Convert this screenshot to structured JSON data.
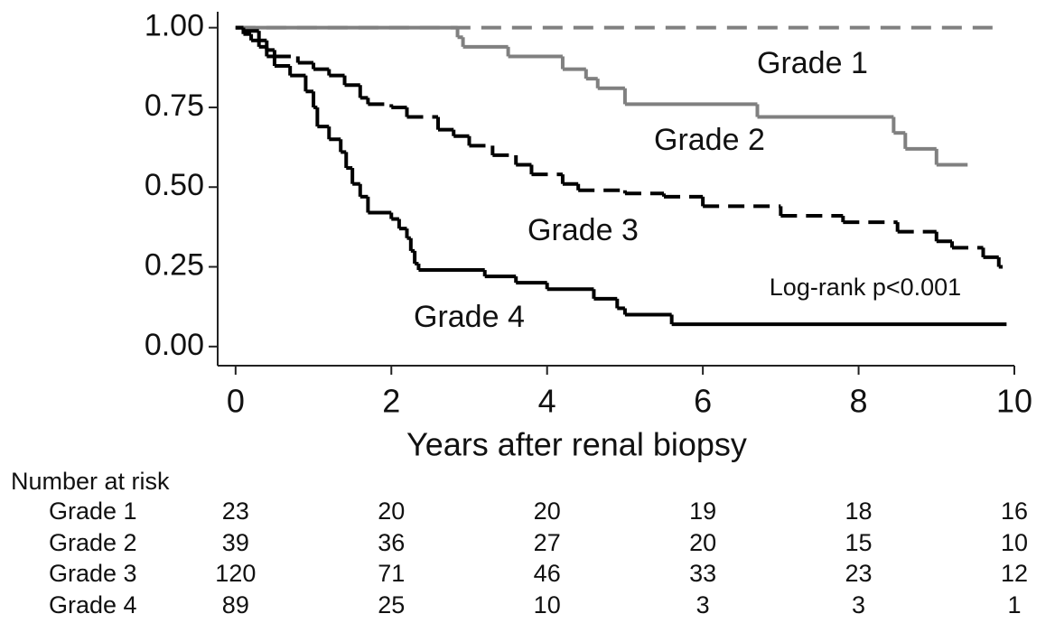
{
  "chart_data": {
    "type": "step",
    "xlabel": "Years after renal biopsy",
    "xlim": [
      -0.23,
      10
    ],
    "ylim": [
      -0.06,
      1.05
    ],
    "xticks": [
      0,
      2,
      4,
      6,
      8,
      10
    ],
    "yticks": [
      {
        "value": 0,
        "label": "0.00"
      },
      {
        "value": 0.25,
        "label": "0.25"
      },
      {
        "value": 0.5,
        "label": "0.50"
      },
      {
        "value": 0.75,
        "label": "0.75"
      },
      {
        "value": 1,
        "label": "1.00"
      }
    ],
    "annotation": "Log-rank p<0.001",
    "risk_title": "Number at risk",
    "series": [
      {
        "name": "Grade 1",
        "color": "#808080",
        "line_style": "dashed",
        "x": [
          0,
          9.77
        ],
        "values": [
          1,
          1
        ],
        "at_risk": [
          23,
          20,
          20,
          19,
          18,
          16
        ]
      },
      {
        "name": "Grade 2",
        "color": "#808080",
        "line_style": "solid",
        "x": [
          0,
          2.85,
          2.92,
          3.5,
          4.2,
          4.5,
          4.65,
          5.0,
          6.7,
          8.45,
          8.6,
          9.0,
          9.4
        ],
        "values": [
          1,
          0.97,
          0.94,
          0.91,
          0.87,
          0.84,
          0.81,
          0.76,
          0.72,
          0.67,
          0.62,
          0.57,
          0.57
        ],
        "at_risk": [
          39,
          36,
          27,
          20,
          15,
          10
        ]
      },
      {
        "name": "Grade 3",
        "color": "#000000",
        "line_style": "dashed",
        "x": [
          0,
          0.1,
          0.3,
          0.4,
          0.5,
          0.8,
          1.0,
          1.2,
          1.4,
          1.6,
          1.7,
          2.0,
          2.2,
          2.6,
          2.8,
          3.0,
          3.3,
          3.6,
          3.8,
          4.2,
          4.4,
          5.0,
          5.5,
          6.0,
          7.0,
          7.8,
          8.5,
          9.0,
          9.2,
          9.6,
          9.8,
          9.85
        ],
        "values": [
          1,
          0.99,
          0.96,
          0.93,
          0.91,
          0.89,
          0.87,
          0.85,
          0.82,
          0.78,
          0.76,
          0.75,
          0.72,
          0.68,
          0.66,
          0.63,
          0.6,
          0.57,
          0.54,
          0.51,
          0.49,
          0.48,
          0.47,
          0.44,
          0.41,
          0.39,
          0.36,
          0.33,
          0.31,
          0.28,
          0.25,
          0.25
        ],
        "at_risk": [
          120,
          71,
          46,
          33,
          23,
          12
        ]
      },
      {
        "name": "Grade 4",
        "color": "#000000",
        "line_style": "solid",
        "x": [
          0,
          0.1,
          0.2,
          0.3,
          0.4,
          0.5,
          0.7,
          0.9,
          1.0,
          1.05,
          1.2,
          1.35,
          1.42,
          1.5,
          1.6,
          1.7,
          2.0,
          2.1,
          2.2,
          2.25,
          2.3,
          2.35,
          3.2,
          3.6,
          4.0,
          4.6,
          4.9,
          5.0,
          5.6,
          9.9
        ],
        "values": [
          1,
          0.98,
          0.96,
          0.94,
          0.91,
          0.88,
          0.85,
          0.8,
          0.75,
          0.69,
          0.65,
          0.61,
          0.56,
          0.51,
          0.47,
          0.42,
          0.4,
          0.37,
          0.34,
          0.3,
          0.26,
          0.24,
          0.22,
          0.2,
          0.18,
          0.15,
          0.12,
          0.1,
          0.07,
          0.07
        ],
        "at_risk": [
          89,
          25,
          10,
          3,
          3,
          1
        ]
      }
    ]
  }
}
